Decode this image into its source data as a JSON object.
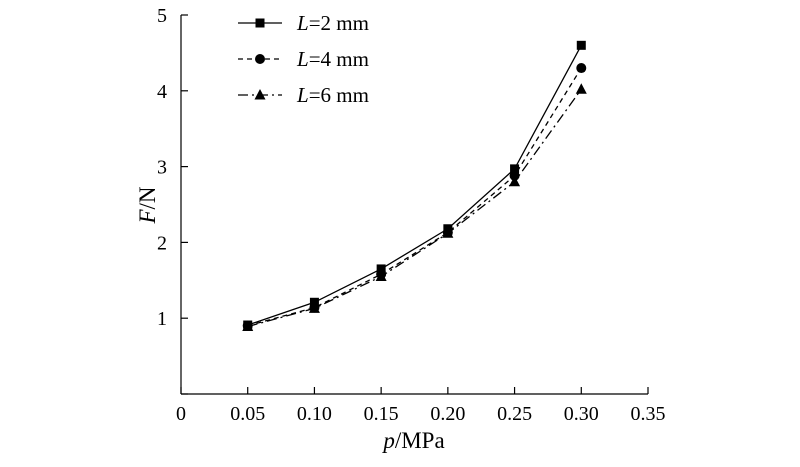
{
  "chart_data": {
    "type": "line",
    "title": "",
    "xlabel": {
      "var": "p",
      "unit": "/MPa"
    },
    "ylabel": {
      "var": "F",
      "unit": "/N"
    },
    "xlim": [
      0,
      0.35
    ],
    "ylim": [
      0,
      5
    ],
    "xticks": [
      "0",
      "0.05",
      "0.10",
      "0.15",
      "0.20",
      "0.25",
      "0.30",
      "0.35"
    ],
    "yticks": [
      "1",
      "2",
      "3",
      "4",
      "5"
    ],
    "grid": false,
    "legend_position": "top-left",
    "x": [
      0.05,
      0.1,
      0.15,
      0.2,
      0.25,
      0.3
    ],
    "series": [
      {
        "name": {
          "var": "L",
          "value": "=2 mm"
        },
        "values": [
          0.91,
          1.21,
          1.65,
          2.18,
          2.97,
          4.6
        ],
        "marker": "square",
        "line": "solid",
        "color": "#000000"
      },
      {
        "name": {
          "var": "L",
          "value": "=4 mm"
        },
        "values": [
          0.9,
          1.14,
          1.58,
          2.13,
          2.88,
          4.3
        ],
        "marker": "circle",
        "line": "dashed",
        "color": "#000000"
      },
      {
        "name": {
          "var": "L",
          "value": "=6 mm"
        },
        "values": [
          0.89,
          1.13,
          1.55,
          2.12,
          2.8,
          4.02
        ],
        "marker": "triangle",
        "line": "dashdot",
        "color": "#000000"
      }
    ]
  }
}
